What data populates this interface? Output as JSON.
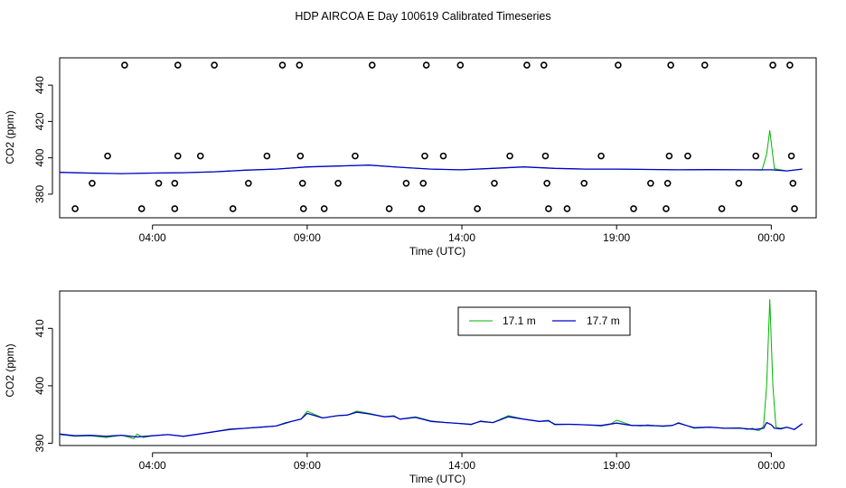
{
  "page_title": "HDP AIRCOA E  Day 100619  Calibrated Timeseries",
  "chart_data": [
    {
      "type": "scatter",
      "title": "",
      "xlabel": "Time (UTC)",
      "ylabel": "CO2 (ppm)",
      "xlim": [
        0,
        24.45
      ],
      "ylim": [
        367,
        455
      ],
      "x_ticks": [
        {
          "x": 3.0,
          "label": "04:00"
        },
        {
          "x": 8.0,
          "label": "09:00"
        },
        {
          "x": 13.0,
          "label": "14:00"
        },
        {
          "x": 18.0,
          "label": "19:00"
        },
        {
          "x": 23.0,
          "label": "00:00"
        }
      ],
      "y_ticks": [
        380,
        400,
        420,
        440
      ],
      "y_tick_labels": [
        "380",
        "400",
        "420",
        "440"
      ],
      "calibration_points": [
        {
          "x": 0.5,
          "y": 372
        },
        {
          "x": 1.05,
          "y": 386
        },
        {
          "x": 1.55,
          "y": 401
        },
        {
          "x": 2.1,
          "y": 451
        },
        {
          "x": 2.65,
          "y": 372
        },
        {
          "x": 3.2,
          "y": 386
        },
        {
          "x": 3.72,
          "y": 372
        },
        {
          "x": 3.72,
          "y": 386
        },
        {
          "x": 3.82,
          "y": 401
        },
        {
          "x": 3.82,
          "y": 451
        },
        {
          "x": 4.55,
          "y": 401
        },
        {
          "x": 5.0,
          "y": 451
        },
        {
          "x": 5.6,
          "y": 372
        },
        {
          "x": 6.1,
          "y": 386
        },
        {
          "x": 6.7,
          "y": 401
        },
        {
          "x": 7.2,
          "y": 451
        },
        {
          "x": 7.75,
          "y": 451
        },
        {
          "x": 7.78,
          "y": 401
        },
        {
          "x": 7.85,
          "y": 386
        },
        {
          "x": 7.88,
          "y": 372
        },
        {
          "x": 8.55,
          "y": 372
        },
        {
          "x": 9.0,
          "y": 386
        },
        {
          "x": 9.55,
          "y": 401
        },
        {
          "x": 10.1,
          "y": 451
        },
        {
          "x": 10.65,
          "y": 372
        },
        {
          "x": 11.2,
          "y": 386
        },
        {
          "x": 11.7,
          "y": 372
        },
        {
          "x": 11.75,
          "y": 386
        },
        {
          "x": 11.8,
          "y": 401
        },
        {
          "x": 11.85,
          "y": 451
        },
        {
          "x": 12.4,
          "y": 401
        },
        {
          "x": 12.95,
          "y": 451
        },
        {
          "x": 13.5,
          "y": 372
        },
        {
          "x": 14.05,
          "y": 386
        },
        {
          "x": 14.55,
          "y": 401
        },
        {
          "x": 15.1,
          "y": 451
        },
        {
          "x": 15.65,
          "y": 451
        },
        {
          "x": 15.7,
          "y": 401
        },
        {
          "x": 15.75,
          "y": 386
        },
        {
          "x": 15.8,
          "y": 372
        },
        {
          "x": 16.4,
          "y": 372
        },
        {
          "x": 16.95,
          "y": 386
        },
        {
          "x": 17.5,
          "y": 401
        },
        {
          "x": 18.05,
          "y": 451
        },
        {
          "x": 18.55,
          "y": 372
        },
        {
          "x": 19.1,
          "y": 386
        },
        {
          "x": 19.6,
          "y": 372
        },
        {
          "x": 19.65,
          "y": 386
        },
        {
          "x": 19.7,
          "y": 401
        },
        {
          "x": 19.75,
          "y": 451
        },
        {
          "x": 20.3,
          "y": 401
        },
        {
          "x": 20.85,
          "y": 451
        },
        {
          "x": 21.4,
          "y": 372
        },
        {
          "x": 21.95,
          "y": 386
        },
        {
          "x": 22.5,
          "y": 401
        },
        {
          "x": 23.05,
          "y": 451
        },
        {
          "x": 23.6,
          "y": 451
        },
        {
          "x": 23.65,
          "y": 401
        },
        {
          "x": 23.7,
          "y": 386
        },
        {
          "x": 23.75,
          "y": 372
        }
      ],
      "series": [
        {
          "color": "#00b400",
          "x": [
            0.0,
            1.0,
            2.0,
            3.0,
            4.0,
            5.0,
            6.0,
            7.0,
            8.0,
            9.0,
            10.0,
            11.0,
            12.0,
            13.0,
            14.0,
            15.0,
            16.0,
            17.0,
            18.0,
            19.0,
            20.0,
            21.0,
            22.0,
            22.7,
            22.85,
            22.95,
            23.1,
            23.3,
            23.5,
            24.0
          ],
          "y": [
            392.0,
            391.5,
            391.3,
            391.6,
            391.8,
            392.3,
            393.2,
            393.8,
            395.0,
            395.5,
            396.0,
            394.8,
            393.8,
            393.4,
            394.2,
            395.0,
            394.2,
            393.8,
            393.8,
            393.6,
            393.4,
            393.5,
            393.4,
            393.2,
            402.0,
            415.0,
            394.0,
            393.4,
            392.8,
            393.8
          ]
        },
        {
          "color": "#0000cc",
          "x": [
            0.0,
            1.0,
            2.0,
            3.0,
            4.0,
            5.0,
            6.0,
            7.0,
            8.0,
            9.0,
            10.0,
            11.0,
            12.0,
            13.0,
            14.0,
            15.0,
            16.0,
            17.0,
            18.0,
            19.0,
            20.0,
            21.0,
            22.0,
            23.0,
            23.5,
            24.0
          ],
          "y": [
            392.0,
            391.6,
            391.3,
            391.6,
            391.8,
            392.3,
            393.2,
            393.8,
            395.0,
            395.5,
            396.0,
            394.8,
            393.8,
            393.4,
            394.2,
            395.0,
            394.2,
            393.8,
            393.8,
            393.6,
            393.4,
            393.5,
            393.4,
            393.4,
            392.8,
            393.8
          ]
        }
      ]
    },
    {
      "type": "line",
      "title": "",
      "xlabel": "Time (UTC)",
      "ylabel": "CO2 (ppm)",
      "xlim": [
        0,
        24.45
      ],
      "ylim": [
        389.6,
        416.5
      ],
      "x_ticks": [
        {
          "x": 3.0,
          "label": "04:00"
        },
        {
          "x": 8.0,
          "label": "09:00"
        },
        {
          "x": 13.0,
          "label": "14:00"
        },
        {
          "x": 18.0,
          "label": "19:00"
        },
        {
          "x": 23.0,
          "label": "00:00"
        }
      ],
      "y_ticks": [
        390,
        400,
        410
      ],
      "y_tick_labels": [
        "390",
        "400",
        "410"
      ],
      "legend_position": "top-right",
      "series": [
        {
          "name": "17.1 m",
          "color": "#00b400",
          "x": [
            0.0,
            0.5,
            1.0,
            1.5,
            2.0,
            2.4,
            2.5,
            2.7,
            3.0,
            3.5,
            4.0,
            4.5,
            5.0,
            5.5,
            6.0,
            6.5,
            7.0,
            7.3,
            7.5,
            7.8,
            8.0,
            8.5,
            9.0,
            9.3,
            9.6,
            10.0,
            10.5,
            10.8,
            11.0,
            11.5,
            12.0,
            12.5,
            13.0,
            13.3,
            13.6,
            14.0,
            14.5,
            15.0,
            15.5,
            15.8,
            16.0,
            16.5,
            17.0,
            17.5,
            17.8,
            18.0,
            18.5,
            18.8,
            19.0,
            19.5,
            19.8,
            20.0,
            20.5,
            21.0,
            21.5,
            22.0,
            22.2,
            22.4,
            22.5,
            22.6,
            22.65,
            22.75,
            22.85,
            22.95,
            23.05,
            23.15,
            23.3,
            23.5,
            23.75,
            24.0
          ],
          "y": [
            391.5,
            391.2,
            391.3,
            391.0,
            391.4,
            390.8,
            391.6,
            391.0,
            391.3,
            391.5,
            391.2,
            391.6,
            392.0,
            392.5,
            392.6,
            392.8,
            393.0,
            393.6,
            393.8,
            394.2,
            395.6,
            394.4,
            394.8,
            394.9,
            395.6,
            395.2,
            394.6,
            394.8,
            394.2,
            394.6,
            393.9,
            393.6,
            393.4,
            393.2,
            393.9,
            393.6,
            394.8,
            394.2,
            393.8,
            394.0,
            393.2,
            393.3,
            393.2,
            393.0,
            393.3,
            394.0,
            393.1,
            393.0,
            393.2,
            392.9,
            393.1,
            393.6,
            392.6,
            392.8,
            392.6,
            392.7,
            392.4,
            392.6,
            392.3,
            392.2,
            392.4,
            393.0,
            400.0,
            415.0,
            400.0,
            392.8,
            392.6,
            392.8,
            392.4,
            393.4
          ]
        },
        {
          "name": "17.7 m",
          "color": "#0000cc",
          "x": [
            0.0,
            0.5,
            1.0,
            1.5,
            2.0,
            2.5,
            3.0,
            3.5,
            4.0,
            4.5,
            5.0,
            5.5,
            6.0,
            6.5,
            7.0,
            7.3,
            7.5,
            7.8,
            8.0,
            8.5,
            9.0,
            9.3,
            9.6,
            10.0,
            10.5,
            10.8,
            11.0,
            11.5,
            12.0,
            12.5,
            13.0,
            13.3,
            13.6,
            14.0,
            14.5,
            15.0,
            15.5,
            15.8,
            16.0,
            16.5,
            17.0,
            17.5,
            18.0,
            18.5,
            19.0,
            19.5,
            19.8,
            20.0,
            20.5,
            21.0,
            21.5,
            22.0,
            22.5,
            22.75,
            22.85,
            23.0,
            23.1,
            23.3,
            23.5,
            23.75,
            24.0
          ],
          "y": [
            391.6,
            391.3,
            391.4,
            391.2,
            391.4,
            391.1,
            391.3,
            391.5,
            391.2,
            391.6,
            392.0,
            392.4,
            392.6,
            392.8,
            393.0,
            393.5,
            393.8,
            394.2,
            395.2,
            394.4,
            394.8,
            394.9,
            395.4,
            395.1,
            394.6,
            394.7,
            394.2,
            394.5,
            393.8,
            393.6,
            393.4,
            393.3,
            393.8,
            393.6,
            394.6,
            394.2,
            393.8,
            393.9,
            393.3,
            393.3,
            393.2,
            393.1,
            393.5,
            393.1,
            393.1,
            393.0,
            393.1,
            393.5,
            392.7,
            392.8,
            392.6,
            392.6,
            392.4,
            392.6,
            393.6,
            393.2,
            392.6,
            392.5,
            392.8,
            392.4,
            393.4
          ]
        }
      ]
    }
  ]
}
